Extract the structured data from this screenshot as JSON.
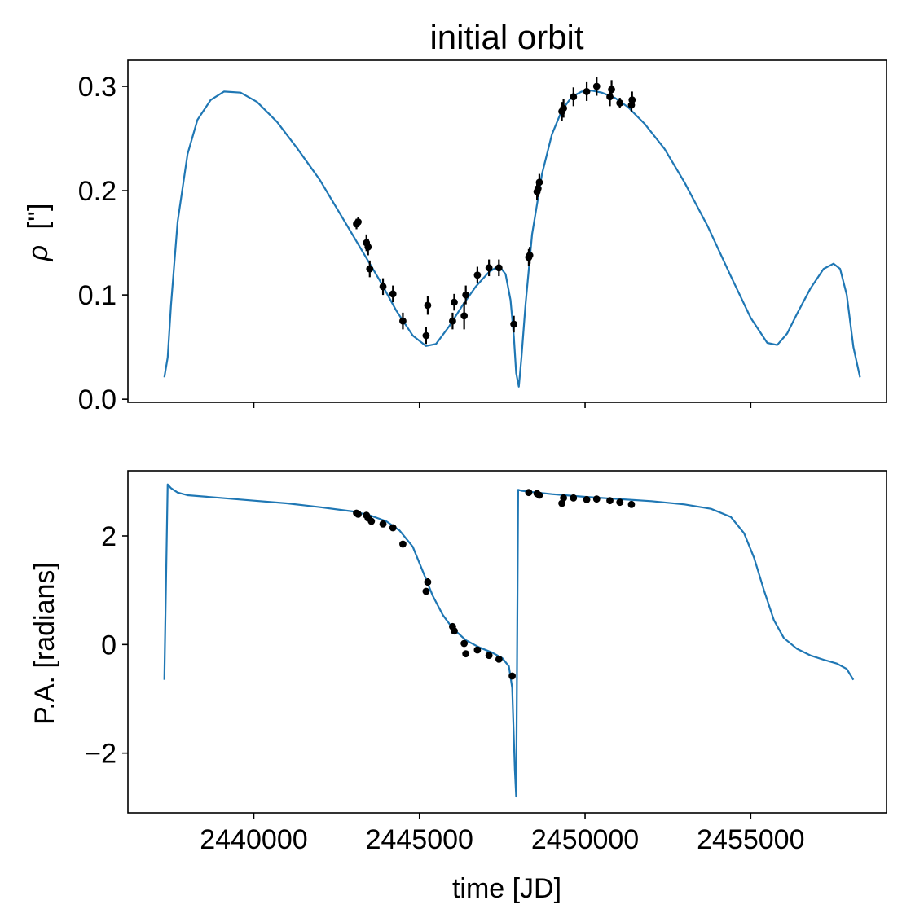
{
  "title": "initial orbit",
  "colors": {
    "model": "#1f77b4",
    "data": "#000000",
    "axes": "#000000",
    "background": "#ffffff"
  },
  "chart_data": [
    {
      "type": "line",
      "panel": "top",
      "title": "initial orbit",
      "xlabel": "",
      "ylabel_symbol": "ρ",
      "ylabel_unit": "['']",
      "xlim": [
        2436200,
        2459100
      ],
      "ylim": [
        -0.003,
        0.325
      ],
      "yticks": [
        0.0,
        0.1,
        0.2,
        0.3
      ],
      "ytick_labels": [
        "0.0",
        "0.1",
        "0.2",
        "0.3"
      ],
      "xticks": [
        2440000,
        2445000,
        2450000,
        2455000
      ],
      "show_xtick_labels": false,
      "grid": false,
      "series": [
        {
          "kind": "model",
          "x": [
            2437300,
            2437400,
            2437500,
            2437700,
            2438000,
            2438300,
            2438700,
            2439100,
            2439600,
            2440100,
            2440700,
            2441300,
            2442000,
            2442600,
            2443200,
            2443800,
            2444300,
            2444800,
            2445200,
            2445500,
            2445900,
            2446300,
            2446700,
            2447100,
            2447400,
            2447600,
            2447750,
            2447850,
            2447920,
            2448000,
            2448080,
            2448200,
            2448400,
            2448700,
            2449000,
            2449300,
            2449600,
            2449900,
            2450200,
            2450500,
            2450900,
            2451300,
            2451800,
            2452400,
            2453000,
            2453700,
            2454400,
            2455000,
            2455500,
            2455800,
            2456100,
            2456400,
            2456800,
            2457200,
            2457500,
            2457700,
            2457900,
            2458100,
            2458300
          ],
          "y": [
            0.021,
            0.04,
            0.09,
            0.17,
            0.235,
            0.268,
            0.287,
            0.295,
            0.294,
            0.285,
            0.266,
            0.241,
            0.21,
            0.178,
            0.146,
            0.114,
            0.085,
            0.061,
            0.051,
            0.053,
            0.07,
            0.09,
            0.108,
            0.122,
            0.128,
            0.12,
            0.095,
            0.06,
            0.025,
            0.012,
            0.04,
            0.09,
            0.158,
            0.216,
            0.254,
            0.277,
            0.29,
            0.295,
            0.296,
            0.294,
            0.289,
            0.28,
            0.264,
            0.24,
            0.208,
            0.166,
            0.118,
            0.078,
            0.054,
            0.052,
            0.063,
            0.082,
            0.106,
            0.125,
            0.13,
            0.125,
            0.1,
            0.05,
            0.021
          ]
        },
        {
          "kind": "observations",
          "x": [
            2443100,
            2443150,
            2443400,
            2443450,
            2443500,
            2443900,
            2444200,
            2444500,
            2445200,
            2445250,
            2446000,
            2446050,
            2446350,
            2446400,
            2446750,
            2447100,
            2447400,
            2447850,
            2448300,
            2448330,
            2448550,
            2448580,
            2448620,
            2449300,
            2449350,
            2449650,
            2450050,
            2450350,
            2450750,
            2450800,
            2451050,
            2451400,
            2451420
          ],
          "y": [
            0.168,
            0.17,
            0.15,
            0.146,
            0.125,
            0.108,
            0.101,
            0.075,
            0.061,
            0.09,
            0.075,
            0.093,
            0.08,
            0.1,
            0.119,
            0.126,
            0.126,
            0.072,
            0.136,
            0.138,
            0.199,
            0.202,
            0.208,
            0.276,
            0.279,
            0.29,
            0.295,
            0.3,
            0.29,
            0.297,
            0.284,
            0.282,
            0.287
          ],
          "yerr": [
            0.005,
            0.005,
            0.008,
            0.008,
            0.008,
            0.008,
            0.008,
            0.008,
            0.008,
            0.009,
            0.008,
            0.008,
            0.013,
            0.009,
            0.008,
            0.008,
            0.008,
            0.008,
            0.008,
            0.008,
            0.008,
            0.008,
            0.008,
            0.009,
            0.009,
            0.009,
            0.009,
            0.009,
            0.009,
            0.009,
            0.005,
            0.006,
            0.008
          ]
        }
      ]
    },
    {
      "type": "line",
      "panel": "bottom",
      "xlabel": "time [JD]",
      "ylabel": "P.A. [radians]",
      "xlim": [
        2436200,
        2459100
      ],
      "ylim": [
        -3.1,
        3.2
      ],
      "yticks": [
        -2,
        0,
        2
      ],
      "ytick_labels": [
        "−2",
        "0",
        "2"
      ],
      "xticks": [
        2440000,
        2445000,
        2450000,
        2455000
      ],
      "xtick_labels": [
        "2440000",
        "2445000",
        "2450000",
        "2455000"
      ],
      "grid": false,
      "series": [
        {
          "kind": "model",
          "x": [
            2437300,
            2437400,
            2437500,
            2437700,
            2438000,
            2439000,
            2440000,
            2441000,
            2442000,
            2443000,
            2443500,
            2444000,
            2444400,
            2444800,
            2445100,
            2445400,
            2445700,
            2446000,
            2446400,
            2446800,
            2447200,
            2447500,
            2447700,
            2447800,
            2447880,
            2447920,
            2447980,
            2448100,
            2449000,
            2450000,
            2451000,
            2452000,
            2453000,
            2453800,
            2454400,
            2454800,
            2455100,
            2455400,
            2455700,
            2456000,
            2456400,
            2456800,
            2457200,
            2457600,
            2457900,
            2458100
          ],
          "y": [
            -0.65,
            2.95,
            2.88,
            2.8,
            2.75,
            2.7,
            2.65,
            2.6,
            2.53,
            2.45,
            2.38,
            2.27,
            2.1,
            1.8,
            1.35,
            0.9,
            0.55,
            0.3,
            0.08,
            -0.05,
            -0.15,
            -0.25,
            -0.4,
            -0.8,
            -2.3,
            -2.8,
            2.85,
            2.83,
            2.77,
            2.72,
            2.68,
            2.64,
            2.58,
            2.5,
            2.35,
            2.05,
            1.6,
            1.0,
            0.45,
            0.12,
            -0.08,
            -0.2,
            -0.28,
            -0.35,
            -0.45,
            -0.65
          ]
        },
        {
          "kind": "observations",
          "x": [
            2443100,
            2443150,
            2443400,
            2443450,
            2443550,
            2443900,
            2444200,
            2444500,
            2445200,
            2445250,
            2446000,
            2446050,
            2446350,
            2446400,
            2446750,
            2447100,
            2447400,
            2447800,
            2448300,
            2448550,
            2448620,
            2449300,
            2449350,
            2449650,
            2450050,
            2450350,
            2450750,
            2451050,
            2451400
          ],
          "y": [
            2.42,
            2.4,
            2.38,
            2.33,
            2.27,
            2.22,
            2.15,
            1.85,
            0.98,
            1.15,
            0.33,
            0.25,
            0.02,
            -0.17,
            -0.1,
            -0.2,
            -0.27,
            -0.58,
            2.8,
            2.78,
            2.75,
            2.6,
            2.7,
            2.7,
            2.67,
            2.68,
            2.65,
            2.62,
            2.58
          ],
          "yerr": [
            0.03,
            0.03,
            0.03,
            0.03,
            0.03,
            0.03,
            0.03,
            0.04,
            0.05,
            0.07,
            0.04,
            0.04,
            0.04,
            0.04,
            0.03,
            0.03,
            0.03,
            0.06,
            0.03,
            0.03,
            0.03,
            0.03,
            0.03,
            0.03,
            0.03,
            0.03,
            0.03,
            0.03,
            0.03
          ]
        }
      ]
    }
  ]
}
